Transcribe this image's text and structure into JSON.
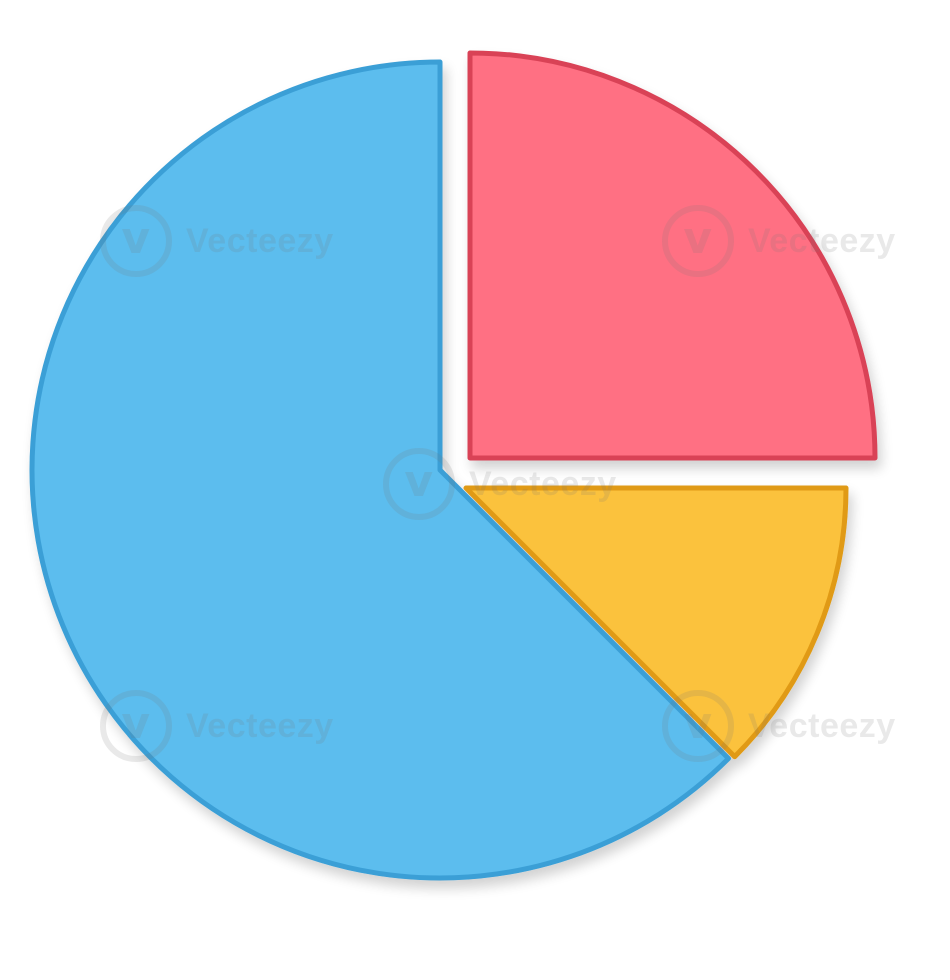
{
  "chart_data": {
    "type": "pie",
    "title": "",
    "slices": [
      {
        "value": 62.5,
        "color": "#5bbdee",
        "edge": "#3a9fd6"
      },
      {
        "value": 25.0,
        "color": "#ff7083",
        "edge": "#d94256"
      },
      {
        "value": 12.5,
        "color": "#fbc23c",
        "edge": "#e09a12"
      }
    ],
    "legend": "none",
    "data_labels": "none"
  },
  "watermark": {
    "text": "Vecteezy",
    "logo_icon": "vecteezy-logo-icon"
  }
}
